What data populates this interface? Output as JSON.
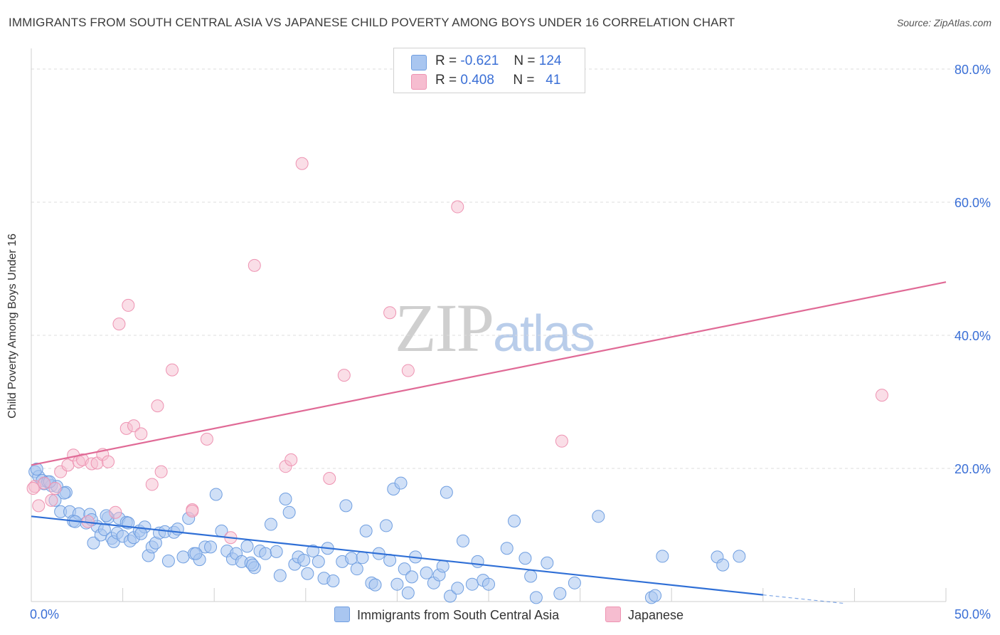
{
  "title": "IMMIGRANTS FROM SOUTH CENTRAL ASIA VS JAPANESE CHILD POVERTY AMONG BOYS UNDER 16 CORRELATION CHART",
  "source": "Source: ZipAtlas.com",
  "watermark": {
    "zip": "ZIP",
    "atlas": "atlas"
  },
  "legend": {
    "r_label": "R =",
    "n_label": "N =",
    "series1": {
      "r": "-0.621",
      "n": "124"
    },
    "series2": {
      "r": "0.408",
      "n": "41"
    }
  },
  "colors": {
    "series1_fill": "#a9c6f0",
    "series1_stroke": "#6f9ee0",
    "series1_line": "#2f6fd6",
    "series2_fill": "#f6bdd0",
    "series2_stroke": "#ee93b2",
    "series2_line": "#e06a96",
    "axis_text": "#3a6fd6",
    "grid": "#dddddd"
  },
  "chart_data": {
    "type": "scatter",
    "title": "IMMIGRANTS FROM SOUTH CENTRAL ASIA VS JAPANESE CHILD POVERTY AMONG BOYS UNDER 16 CORRELATION CHART",
    "xlabel": "",
    "ylabel": "Child Poverty Among Boys Under 16",
    "xlim": [
      0,
      50
    ],
    "ylim": [
      0,
      80
    ],
    "x_tick_labels": [
      {
        "value": 0,
        "label": "0.0%"
      },
      {
        "value": 50,
        "label": "50.0%"
      }
    ],
    "y_tick_labels": [
      {
        "value": 20,
        "label": "20.0%"
      },
      {
        "value": 40,
        "label": "40.0%"
      },
      {
        "value": 60,
        "label": "60.0%"
      },
      {
        "value": 80,
        "label": "80.0%"
      }
    ],
    "series": [
      {
        "name": "Immigrants from South Central Asia",
        "r": -0.621,
        "n": 124,
        "trend": {
          "x0": 0,
          "y0": 12.8,
          "x1": 40,
          "y1": 1.0,
          "dash_to_x": 44.5,
          "dash_to_y": -0.3
        },
        "points": [
          [
            0.2,
            19.5
          ],
          [
            0.4,
            18.8
          ],
          [
            0.6,
            18.2
          ],
          [
            0.7,
            17.7
          ],
          [
            0.9,
            18.0
          ],
          [
            1.1,
            17.4
          ],
          [
            1.3,
            15.2
          ],
          [
            1.6,
            13.5
          ],
          [
            1.9,
            16.4
          ],
          [
            1.4,
            17.3
          ],
          [
            2.1,
            13.5
          ],
          [
            2.3,
            12.1
          ],
          [
            2.6,
            13.2
          ],
          [
            3.0,
            11.8
          ],
          [
            3.2,
            13.1
          ],
          [
            3.4,
            8.8
          ],
          [
            3.6,
            11.3
          ],
          [
            3.8,
            10.0
          ],
          [
            4.0,
            10.8
          ],
          [
            4.2,
            12.6
          ],
          [
            4.4,
            9.5
          ],
          [
            4.5,
            9.0
          ],
          [
            4.7,
            10.3
          ],
          [
            4.8,
            12.5
          ],
          [
            5.0,
            9.8
          ],
          [
            5.2,
            11.9
          ],
          [
            5.4,
            9.1
          ],
          [
            5.6,
            9.6
          ],
          [
            5.9,
            10.6
          ],
          [
            6.2,
            11.2
          ],
          [
            6.4,
            6.9
          ],
          [
            6.6,
            8.2
          ],
          [
            6.8,
            8.8
          ],
          [
            7.0,
            10.3
          ],
          [
            7.3,
            10.5
          ],
          [
            7.5,
            6.1
          ],
          [
            7.8,
            10.4
          ],
          [
            8.0,
            10.9
          ],
          [
            8.3,
            6.7
          ],
          [
            8.6,
            12.5
          ],
          [
            8.9,
            7.2
          ],
          [
            9.2,
            6.3
          ],
          [
            9.5,
            8.2
          ],
          [
            9.8,
            8.2
          ],
          [
            10.1,
            16.1
          ],
          [
            10.4,
            10.6
          ],
          [
            10.7,
            7.6
          ],
          [
            11.0,
            6.4
          ],
          [
            11.2,
            7.2
          ],
          [
            11.5,
            6.0
          ],
          [
            11.8,
            8.3
          ],
          [
            12.0,
            5.8
          ],
          [
            12.2,
            5.1
          ],
          [
            12.5,
            7.6
          ],
          [
            12.8,
            7.2
          ],
          [
            13.1,
            11.6
          ],
          [
            13.4,
            7.5
          ],
          [
            13.6,
            3.9
          ],
          [
            13.9,
            15.4
          ],
          [
            14.1,
            13.4
          ],
          [
            14.4,
            5.6
          ],
          [
            14.6,
            6.7
          ],
          [
            14.9,
            6.2
          ],
          [
            15.1,
            4.2
          ],
          [
            15.4,
            7.6
          ],
          [
            15.7,
            6.0
          ],
          [
            16.0,
            3.5
          ],
          [
            16.2,
            8.0
          ],
          [
            16.5,
            3.1
          ],
          [
            17.0,
            6.0
          ],
          [
            17.2,
            14.4
          ],
          [
            17.5,
            6.5
          ],
          [
            17.8,
            4.9
          ],
          [
            18.1,
            6.6
          ],
          [
            18.3,
            10.6
          ],
          [
            18.6,
            2.8
          ],
          [
            18.8,
            2.5
          ],
          [
            19.0,
            7.2
          ],
          [
            19.4,
            11.4
          ],
          [
            19.6,
            6.2
          ],
          [
            19.8,
            16.9
          ],
          [
            20.0,
            2.6
          ],
          [
            20.2,
            17.8
          ],
          [
            20.4,
            4.9
          ],
          [
            20.6,
            1.3
          ],
          [
            20.8,
            3.7
          ],
          [
            21.0,
            6.7
          ],
          [
            21.6,
            4.3
          ],
          [
            22.0,
            2.8
          ],
          [
            22.3,
            4.0
          ],
          [
            22.5,
            5.3
          ],
          [
            22.7,
            16.4
          ],
          [
            22.9,
            0.8
          ],
          [
            23.3,
            2.0
          ],
          [
            23.6,
            9.1
          ],
          [
            24.1,
            2.6
          ],
          [
            24.4,
            6.0
          ],
          [
            24.7,
            3.2
          ],
          [
            25.0,
            2.6
          ],
          [
            26.0,
            8.0
          ],
          [
            26.4,
            12.1
          ],
          [
            27.0,
            6.5
          ],
          [
            27.3,
            3.8
          ],
          [
            27.6,
            0.6
          ],
          [
            28.2,
            5.8
          ],
          [
            28.9,
            1.2
          ],
          [
            29.7,
            2.8
          ],
          [
            31.0,
            12.8
          ],
          [
            33.9,
            0.6
          ],
          [
            34.1,
            0.9
          ],
          [
            34.5,
            6.8
          ],
          [
            37.5,
            6.7
          ],
          [
            37.8,
            5.5
          ],
          [
            38.7,
            6.8
          ],
          [
            0.3,
            19.9
          ],
          [
            1.0,
            18.0
          ],
          [
            1.8,
            16.3
          ],
          [
            2.4,
            12.0
          ],
          [
            3.3,
            12.3
          ],
          [
            4.1,
            12.9
          ],
          [
            5.3,
            11.8
          ],
          [
            6.0,
            10.2
          ],
          [
            9.0,
            7.2
          ],
          [
            12.1,
            5.5
          ]
        ]
      },
      {
        "name": "Japanese",
        "r": 0.408,
        "n": 41,
        "trend": {
          "x0": 0,
          "y0": 20.5,
          "x1": 50,
          "y1": 48.0
        },
        "points": [
          [
            0.2,
            17.3
          ],
          [
            0.4,
            14.4
          ],
          [
            0.7,
            17.8
          ],
          [
            1.1,
            15.2
          ],
          [
            1.3,
            17.0
          ],
          [
            1.6,
            19.5
          ],
          [
            2.0,
            20.5
          ],
          [
            2.3,
            22.0
          ],
          [
            2.6,
            21.0
          ],
          [
            2.8,
            21.3
          ],
          [
            3.1,
            12.0
          ],
          [
            3.3,
            20.7
          ],
          [
            3.6,
            20.8
          ],
          [
            3.9,
            22.1
          ],
          [
            4.2,
            21.0
          ],
          [
            4.6,
            13.4
          ],
          [
            4.8,
            41.7
          ],
          [
            5.3,
            44.5
          ],
          [
            5.2,
            26.0
          ],
          [
            5.6,
            26.4
          ],
          [
            6.0,
            25.2
          ],
          [
            6.6,
            17.6
          ],
          [
            6.9,
            29.4
          ],
          [
            7.1,
            19.5
          ],
          [
            7.7,
            34.8
          ],
          [
            8.8,
            13.8
          ],
          [
            8.8,
            13.6
          ],
          [
            9.6,
            24.4
          ],
          [
            10.9,
            9.6
          ],
          [
            12.2,
            50.5
          ],
          [
            13.9,
            20.3
          ],
          [
            14.2,
            21.3
          ],
          [
            14.8,
            65.8
          ],
          [
            16.3,
            18.5
          ],
          [
            17.1,
            34.0
          ],
          [
            19.6,
            43.4
          ],
          [
            20.6,
            34.7
          ],
          [
            23.3,
            59.3
          ],
          [
            29.0,
            24.1
          ],
          [
            46.5,
            31.0
          ],
          [
            0.1,
            17.0
          ]
        ]
      }
    ]
  }
}
